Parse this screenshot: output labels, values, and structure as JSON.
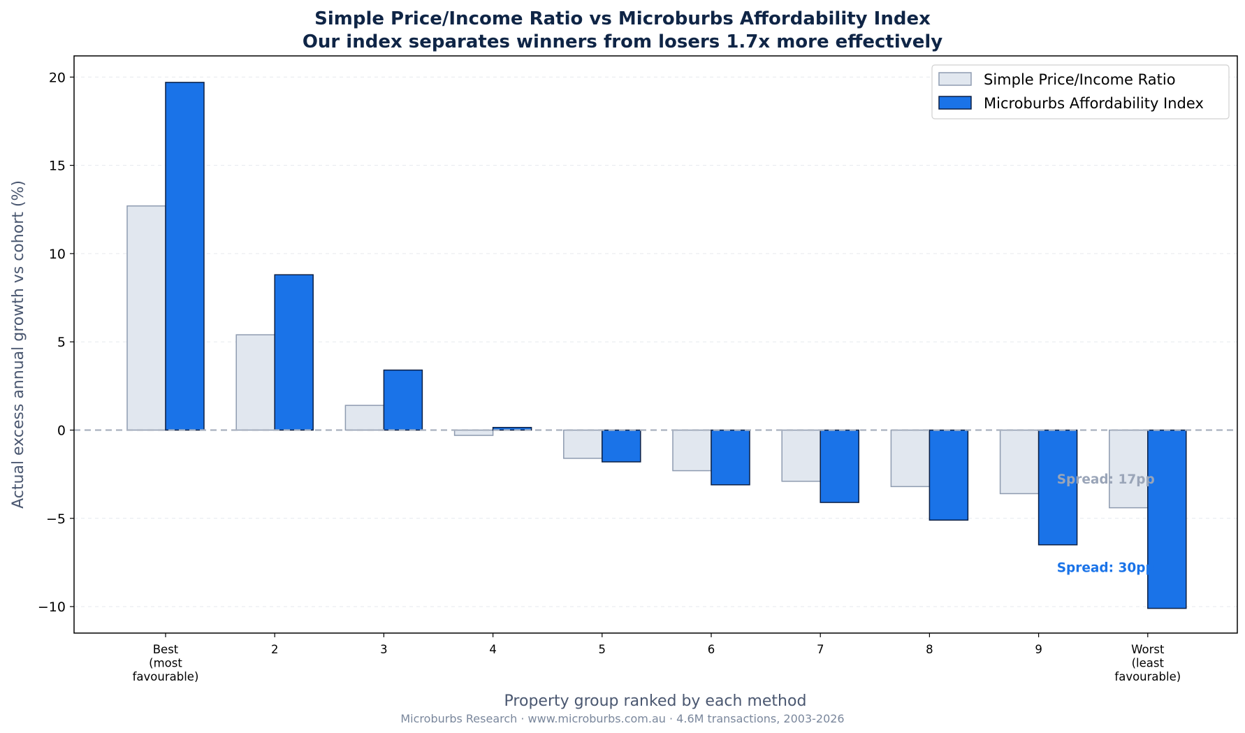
{
  "chart_data": {
    "type": "bar",
    "title_line1": "Simple Price/Income Ratio vs Microburbs Affordability Index",
    "title_line2": "Our index separates winners from losers 1.7x more effectively",
    "xlabel": "Property group ranked by each method",
    "ylabel": "Actual excess annual growth vs cohort (%)",
    "footer": "Microburbs Research · www.microburbs.com.au · 4.6M transactions, 2003-2026",
    "categories": [
      [
        "Best",
        "(most",
        "favourable)"
      ],
      [
        "2"
      ],
      [
        "3"
      ],
      [
        "4"
      ],
      [
        "5"
      ],
      [
        "6"
      ],
      [
        "7"
      ],
      [
        "8"
      ],
      [
        "9"
      ],
      [
        "Worst",
        "(least",
        "favourable)"
      ]
    ],
    "series": [
      {
        "name": "Simple Price/Income Ratio",
        "values": [
          12.7,
          5.4,
          1.4,
          -0.3,
          -1.6,
          -2.3,
          -2.9,
          -3.2,
          -3.6,
          -4.4
        ],
        "fill": "#e1e7ef",
        "stroke": "#8e9bb0"
      },
      {
        "name": "Microburbs Affordability Index",
        "values": [
          19.7,
          8.8,
          3.4,
          0.15,
          -1.8,
          -3.1,
          -4.1,
          -5.1,
          -6.5,
          -10.1
        ],
        "fill": "#1a73e8",
        "stroke": "#0b1f44"
      }
    ],
    "ylim": [
      -11.5,
      21.2
    ],
    "yticks": [
      20,
      15,
      10,
      5,
      0,
      -5,
      -10
    ],
    "ytick_labels": [
      "20",
      "15",
      "10",
      "5",
      "0",
      "−5",
      "−10"
    ],
    "legend_position": "top-right",
    "zero_line": true,
    "grid": "horizontal-dashed",
    "annotations": [
      {
        "text": "Spread: 17pp",
        "x_category": 8.5,
        "y": -2.75,
        "color": "#9aa5b8"
      },
      {
        "text": "Spread: 30pp",
        "x_category": 8.5,
        "y": -7.75,
        "color": "#1a73e8"
      }
    ]
  },
  "colors": {
    "title": "#0f2546",
    "axis_label": "#4a5770",
    "footer": "#7a879c",
    "zero_line": "#a9b1bf",
    "grid": "#e6e9ee"
  }
}
